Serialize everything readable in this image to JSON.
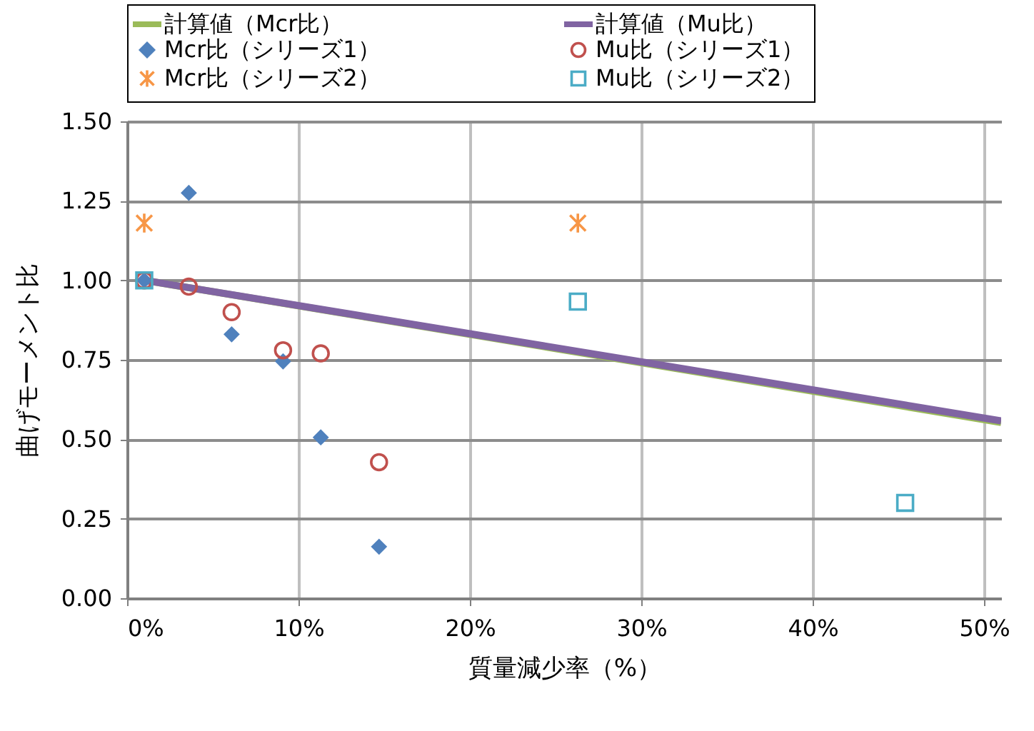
{
  "chart_data": {
    "type": "scatter",
    "xlabel": "質量減少率（%）",
    "ylabel": "曲げモーメント比",
    "xlim": [
      0,
      51
    ],
    "ylim": [
      0,
      1.5
    ],
    "xticks": [
      {
        "value": 0,
        "label": "0%"
      },
      {
        "value": 10,
        "label": "10%"
      },
      {
        "value": 20,
        "label": "20%"
      },
      {
        "value": 30,
        "label": "30%"
      },
      {
        "value": 40,
        "label": "40%"
      },
      {
        "value": 50,
        "label": "50%"
      }
    ],
    "yticks": [
      {
        "value": 0,
        "label": "0.00"
      },
      {
        "value": 0.25,
        "label": "0.25"
      },
      {
        "value": 0.5,
        "label": "0.50"
      },
      {
        "value": 0.75,
        "label": "0.75"
      },
      {
        "value": 1,
        "label": "1.00"
      },
      {
        "value": 1.25,
        "label": "1.25"
      },
      {
        "value": 1.5,
        "label": "1.50"
      }
    ],
    "grid": true,
    "legend": "top",
    "line_style": "solid",
    "series": [
      {
        "name": "計算値（Mcr比）",
        "type": "line",
        "marker": "none",
        "color": "#9bbb59",
        "x": [
          1,
          51
        ],
        "values": [
          1.0,
          0.553
        ]
      },
      {
        "name": "計算値（Mu比）",
        "type": "line",
        "marker": "none",
        "color": "#8064a2",
        "x": [
          1,
          51
        ],
        "values": [
          1.0,
          0.558
        ]
      },
      {
        "name": "Mcr比（シリーズ1）",
        "type": "scatter",
        "marker": "diamond",
        "color": "#4f81bd",
        "x": [
          1,
          3.6,
          6.1,
          9.1,
          11.3,
          14.7
        ],
        "values": [
          1.0,
          1.275,
          0.83,
          0.745,
          0.506,
          0.162
        ]
      },
      {
        "name": "Mu比（シリーズ1）",
        "type": "scatter",
        "marker": "circle",
        "color": "#c0504d",
        "x": [
          1,
          3.6,
          6.1,
          9.1,
          11.3,
          14.7
        ],
        "values": [
          1.0,
          0.98,
          0.9,
          0.78,
          0.77,
          0.428
        ]
      },
      {
        "name": "Mcr比（シリーズ2）",
        "type": "scatter",
        "marker": "cross",
        "color": "#f79646",
        "x": [
          1,
          26.3
        ],
        "values": [
          1.18,
          1.18
        ]
      },
      {
        "name": "Mu比（シリーズ2）",
        "type": "scatter",
        "marker": "square",
        "color": "#4bacc6",
        "x": [
          1,
          26.3,
          45.4
        ],
        "values": [
          1.0,
          0.933,
          0.3
        ]
      }
    ]
  }
}
